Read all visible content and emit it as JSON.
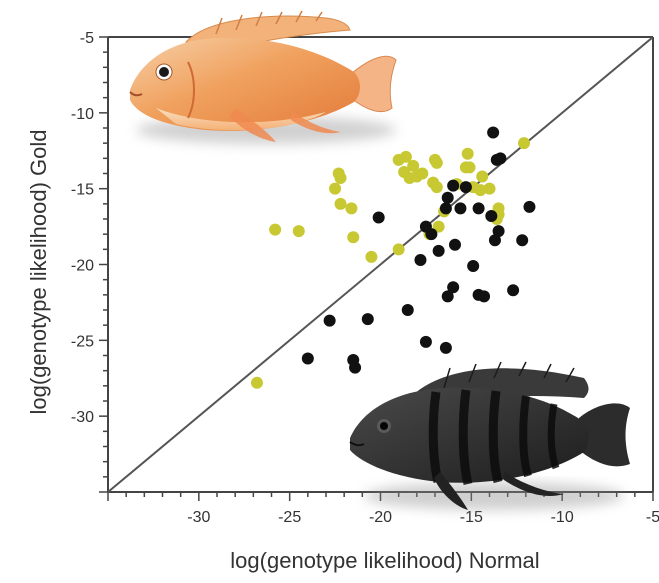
{
  "chart_data": {
    "type": "scatter",
    "xlabel": "log(genotype likelihood) Normal",
    "ylabel": "log(genotype likelihood) Gold",
    "xlim": [
      -35,
      -5
    ],
    "ylim": [
      -35,
      -5
    ],
    "x_ticks": [
      -30,
      -25,
      -20,
      -15,
      -10,
      -5
    ],
    "y_ticks": [
      -5,
      -10,
      -15,
      -20,
      -25,
      -30
    ],
    "x_tick_labels": [
      "-30",
      "-25",
      "-20",
      "-15",
      "-10",
      "-5"
    ],
    "y_tick_labels": [
      "-5",
      "-10",
      "-15",
      "-20",
      "-25",
      "-30"
    ],
    "diagonal_line": {
      "from": [
        -35,
        -35
      ],
      "to": [
        -5,
        -5
      ],
      "color": "#555555"
    },
    "grid": false,
    "colors": {
      "gold_points": "#c8c832",
      "black_points": "#111111",
      "axes": "#444444",
      "gold_fish": "#f0a060",
      "black_fish": "#2a2a2a"
    },
    "images": [
      {
        "icon": "gold-fish-photo",
        "placement": "top-left"
      },
      {
        "icon": "black-barred-fish-photo",
        "placement": "bottom-right"
      }
    ],
    "series": [
      {
        "color": "#c8c832",
        "points": [
          [
            -26.8,
            -27.8
          ],
          [
            -25.8,
            -17.7
          ],
          [
            -24.5,
            -17.8
          ],
          [
            -22.3,
            -14.0
          ],
          [
            -22.2,
            -14.3
          ],
          [
            -22.5,
            -15.0
          ],
          [
            -22.2,
            -16.0
          ],
          [
            -21.6,
            -16.3
          ],
          [
            -21.5,
            -18.2
          ],
          [
            -19.0,
            -13.1
          ],
          [
            -18.6,
            -12.9
          ],
          [
            -18.7,
            -13.9
          ],
          [
            -18.2,
            -13.5
          ],
          [
            -18.4,
            -14.3
          ],
          [
            -18.0,
            -14.2
          ],
          [
            -17.7,
            -14.0
          ],
          [
            -17.0,
            -13.1
          ],
          [
            -16.9,
            -13.3
          ],
          [
            -17.1,
            -14.6
          ],
          [
            -16.9,
            -14.9
          ],
          [
            -15.8,
            -14.7
          ],
          [
            -15.2,
            -12.7
          ],
          [
            -15.3,
            -13.6
          ],
          [
            -15.1,
            -13.6
          ],
          [
            -14.9,
            -14.9
          ],
          [
            -14.4,
            -14.2
          ],
          [
            -14.5,
            -15.1
          ],
          [
            -14.0,
            -15.0
          ],
          [
            -13.5,
            -16.3
          ],
          [
            -13.5,
            -16.7
          ],
          [
            -13.6,
            -17.0
          ],
          [
            -12.1,
            -12.0
          ],
          [
            -20.5,
            -19.5
          ],
          [
            -19.0,
            -19.0
          ],
          [
            -17.3,
            -18.0
          ],
          [
            -16.5,
            -16.5
          ],
          [
            -16.8,
            -17.5
          ]
        ]
      },
      {
        "color": "#111111",
        "points": [
          [
            -22.8,
            -23.7
          ],
          [
            -21.5,
            -26.3
          ],
          [
            -21.4,
            -26.8
          ],
          [
            -20.7,
            -23.6
          ],
          [
            -24.0,
            -26.2
          ],
          [
            -20.1,
            -16.9
          ],
          [
            -18.5,
            -23.0
          ],
          [
            -17.5,
            -25.1
          ],
          [
            -16.4,
            -25.5
          ],
          [
            -17.8,
            -19.7
          ],
          [
            -17.5,
            -17.5
          ],
          [
            -17.2,
            -18.0
          ],
          [
            -16.4,
            -16.3
          ],
          [
            -16.3,
            -15.6
          ],
          [
            -16.0,
            -14.8
          ],
          [
            -15.6,
            -16.3
          ],
          [
            -15.3,
            -14.9
          ],
          [
            -15.9,
            -18.7
          ],
          [
            -14.6,
            -16.3
          ],
          [
            -14.9,
            -20.1
          ],
          [
            -14.3,
            -22.1
          ],
          [
            -16.3,
            -22.1
          ],
          [
            -16.0,
            -21.5
          ],
          [
            -13.9,
            -16.8
          ],
          [
            -13.6,
            -13.1
          ],
          [
            -13.4,
            -13.0
          ],
          [
            -13.8,
            -11.3
          ],
          [
            -13.5,
            -17.8
          ],
          [
            -13.7,
            -18.4
          ],
          [
            -12.7,
            -21.7
          ],
          [
            -12.2,
            -18.4
          ],
          [
            -11.8,
            -16.2
          ],
          [
            -14.6,
            -22.0
          ],
          [
            -16.8,
            -19.1
          ]
        ]
      }
    ]
  }
}
